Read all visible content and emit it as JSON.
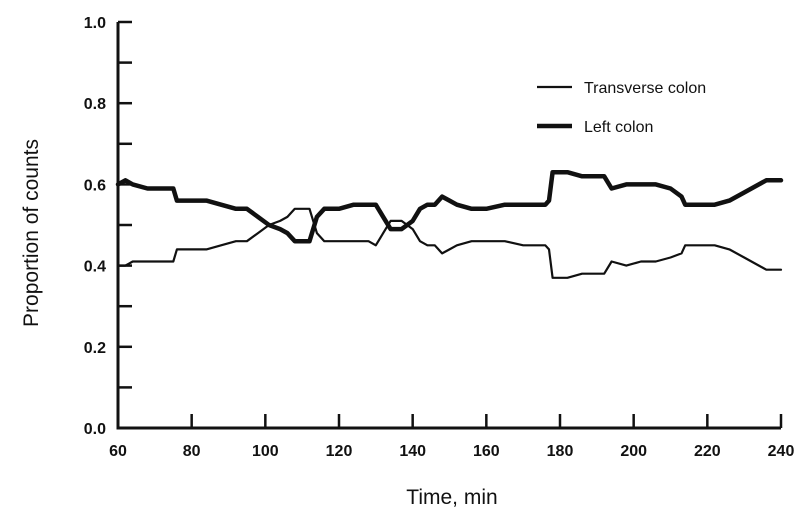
{
  "chart_data": {
    "type": "line",
    "title": "",
    "xlabel": "Time, min",
    "ylabel": "Proportion of counts",
    "xlim": [
      60,
      240
    ],
    "ylim": [
      0.0,
      1.0
    ],
    "x_ticks": [
      "60",
      "80",
      "100",
      "120",
      "140",
      "160",
      "180",
      "200",
      "220",
      "240"
    ],
    "y_ticks": [
      "0.0",
      "0.2",
      "0.4",
      "0.6",
      "0.8",
      "1.0"
    ],
    "grid": false,
    "legend_position": "top-right",
    "series": [
      {
        "name": "Transverse colon",
        "style": "thin",
        "points": [
          [
            60,
            0.4
          ],
          [
            62,
            0.4
          ],
          [
            64,
            0.41
          ],
          [
            68,
            0.41
          ],
          [
            72,
            0.41
          ],
          [
            75,
            0.41
          ],
          [
            76,
            0.44
          ],
          [
            80,
            0.44
          ],
          [
            84,
            0.44
          ],
          [
            88,
            0.45
          ],
          [
            92,
            0.46
          ],
          [
            95,
            0.46
          ],
          [
            98,
            0.48
          ],
          [
            101,
            0.5
          ],
          [
            104,
            0.51
          ],
          [
            106,
            0.52
          ],
          [
            108,
            0.54
          ],
          [
            112,
            0.54
          ],
          [
            114,
            0.48
          ],
          [
            116,
            0.46
          ],
          [
            120,
            0.46
          ],
          [
            124,
            0.46
          ],
          [
            128,
            0.46
          ],
          [
            130,
            0.45
          ],
          [
            132,
            0.48
          ],
          [
            134,
            0.51
          ],
          [
            137,
            0.51
          ],
          [
            140,
            0.49
          ],
          [
            142,
            0.46
          ],
          [
            144,
            0.45
          ],
          [
            146,
            0.45
          ],
          [
            148,
            0.43
          ],
          [
            150,
            0.44
          ],
          [
            152,
            0.45
          ],
          [
            156,
            0.46
          ],
          [
            160,
            0.46
          ],
          [
            165,
            0.46
          ],
          [
            170,
            0.45
          ],
          [
            176,
            0.45
          ],
          [
            177,
            0.44
          ],
          [
            178,
            0.37
          ],
          [
            182,
            0.37
          ],
          [
            186,
            0.38
          ],
          [
            192,
            0.38
          ],
          [
            194,
            0.41
          ],
          [
            198,
            0.4
          ],
          [
            202,
            0.41
          ],
          [
            206,
            0.41
          ],
          [
            210,
            0.42
          ],
          [
            213,
            0.43
          ],
          [
            214,
            0.45
          ],
          [
            218,
            0.45
          ],
          [
            222,
            0.45
          ],
          [
            226,
            0.44
          ],
          [
            230,
            0.42
          ],
          [
            234,
            0.4
          ],
          [
            236,
            0.39
          ],
          [
            240,
            0.39
          ]
        ]
      },
      {
        "name": "Left colon",
        "style": "thick",
        "points": [
          [
            60,
            0.6
          ],
          [
            62,
            0.61
          ],
          [
            64,
            0.6
          ],
          [
            68,
            0.59
          ],
          [
            72,
            0.59
          ],
          [
            75,
            0.59
          ],
          [
            76,
            0.56
          ],
          [
            80,
            0.56
          ],
          [
            84,
            0.56
          ],
          [
            88,
            0.55
          ],
          [
            92,
            0.54
          ],
          [
            95,
            0.54
          ],
          [
            98,
            0.52
          ],
          [
            101,
            0.5
          ],
          [
            104,
            0.49
          ],
          [
            106,
            0.48
          ],
          [
            108,
            0.46
          ],
          [
            112,
            0.46
          ],
          [
            114,
            0.52
          ],
          [
            116,
            0.54
          ],
          [
            120,
            0.54
          ],
          [
            124,
            0.55
          ],
          [
            128,
            0.55
          ],
          [
            130,
            0.55
          ],
          [
            132,
            0.52
          ],
          [
            134,
            0.49
          ],
          [
            137,
            0.49
          ],
          [
            140,
            0.51
          ],
          [
            142,
            0.54
          ],
          [
            144,
            0.55
          ],
          [
            146,
            0.55
          ],
          [
            148,
            0.57
          ],
          [
            150,
            0.56
          ],
          [
            152,
            0.55
          ],
          [
            156,
            0.54
          ],
          [
            160,
            0.54
          ],
          [
            165,
            0.55
          ],
          [
            170,
            0.55
          ],
          [
            176,
            0.55
          ],
          [
            177,
            0.56
          ],
          [
            178,
            0.63
          ],
          [
            182,
            0.63
          ],
          [
            186,
            0.62
          ],
          [
            192,
            0.62
          ],
          [
            194,
            0.59
          ],
          [
            198,
            0.6
          ],
          [
            202,
            0.6
          ],
          [
            206,
            0.6
          ],
          [
            210,
            0.59
          ],
          [
            213,
            0.57
          ],
          [
            214,
            0.55
          ],
          [
            218,
            0.55
          ],
          [
            222,
            0.55
          ],
          [
            226,
            0.56
          ],
          [
            230,
            0.58
          ],
          [
            234,
            0.6
          ],
          [
            236,
            0.61
          ],
          [
            240,
            0.61
          ]
        ]
      }
    ]
  }
}
